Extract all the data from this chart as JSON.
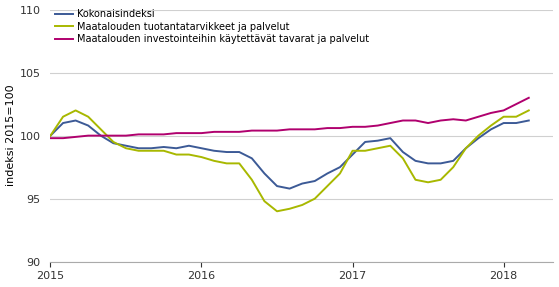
{
  "title": "",
  "ylabel": "indeksi 2015=100",
  "ylim": [
    90,
    110
  ],
  "yticks": [
    90,
    95,
    100,
    105,
    110
  ],
  "xlim": [
    2015.0,
    2018.33
  ],
  "line_colors": {
    "kokonais": "#3c5a96",
    "tuotanto": "#a8b800",
    "investointi": "#b0006e"
  },
  "legend_labels": [
    "Kokonaisindeksi",
    "Maatalouden tuotantatarvikkeet ja palvelut",
    "Maatalouden investointeihin käytettävät tavarat ja palvelut"
  ],
  "background_color": "#ffffff",
  "plot_bg_color": "#ffffff",
  "grid_color": "#d0d0d0",
  "kokonais": [
    100.0,
    101.0,
    101.2,
    100.8,
    100.0,
    99.4,
    99.2,
    99.0,
    99.0,
    99.1,
    99.0,
    99.2,
    99.0,
    98.8,
    98.7,
    98.7,
    98.2,
    97.0,
    96.0,
    95.8,
    96.2,
    96.4,
    97.0,
    97.5,
    98.5,
    99.5,
    99.6,
    99.8,
    98.7,
    98.0,
    97.8,
    97.8,
    98.0,
    99.0,
    99.8,
    100.5,
    101.0,
    101.0,
    101.2
  ],
  "tuotanto": [
    100.0,
    101.5,
    102.0,
    101.5,
    100.5,
    99.5,
    99.0,
    98.8,
    98.8,
    98.8,
    98.5,
    98.5,
    98.3,
    98.0,
    97.8,
    97.8,
    96.5,
    94.8,
    94.0,
    94.2,
    94.5,
    95.0,
    96.0,
    97.0,
    98.8,
    98.8,
    99.0,
    99.2,
    98.2,
    96.5,
    96.3,
    96.5,
    97.5,
    99.0,
    100.0,
    100.8,
    101.5,
    101.5,
    102.0
  ],
  "investointi": [
    99.8,
    99.8,
    99.9,
    100.0,
    100.0,
    100.0,
    100.0,
    100.1,
    100.1,
    100.1,
    100.2,
    100.2,
    100.2,
    100.3,
    100.3,
    100.3,
    100.4,
    100.4,
    100.4,
    100.5,
    100.5,
    100.5,
    100.6,
    100.6,
    100.7,
    100.7,
    100.8,
    101.0,
    101.2,
    101.2,
    101.0,
    101.2,
    101.3,
    101.2,
    101.5,
    101.8,
    102.0,
    102.5,
    103.0
  ],
  "xtick_positions": [
    2015.0,
    2016.0,
    2017.0,
    2018.0
  ],
  "xtick_labels": [
    "2015",
    "2016",
    "2017",
    "2018"
  ]
}
